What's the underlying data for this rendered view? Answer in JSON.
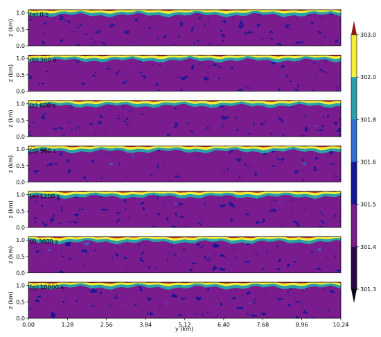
{
  "chart_data": {
    "type": "heatmap",
    "xlabel": "y (km)",
    "ylabel": "z (km)",
    "xlim": [
      0,
      10.24
    ],
    "ylim": [
      0,
      1.1
    ],
    "x_ticks": [
      "0.00",
      "1.28",
      "2.56",
      "3.84",
      "5.12",
      "6.40",
      "7.68",
      "8.96",
      "10.24"
    ],
    "y_ticks": [
      "0.0",
      "0.5",
      "1.0"
    ],
    "panels": [
      {
        "label": "(a) 0 s",
        "time_s": 0
      },
      {
        "label": "(b) 300 s",
        "time_s": 300
      },
      {
        "label": "(c) 600 s",
        "time_s": 600
      },
      {
        "label": "(d) 900 s",
        "time_s": 900
      },
      {
        "label": "(e) 1200 s",
        "time_s": 1200
      },
      {
        "label": "(f) 3600 s",
        "time_s": 3600
      },
      {
        "label": "(g) 10800 s",
        "time_s": 10800
      }
    ],
    "colorbar": {
      "ticks": [
        "303.0",
        "302.0",
        "301.8",
        "301.6",
        "301.5",
        "301.4",
        "301.3"
      ],
      "levels": [
        301.3,
        301.4,
        301.5,
        301.6,
        301.8,
        302.0,
        303.0
      ],
      "colors": [
        "#2a0a44",
        "#7a1c8e",
        "#151896",
        "#2f6fd6",
        "#2aa0a8",
        "#f2ee3a"
      ],
      "extend_low_color": "#0c0418",
      "extend_high_color": "#8e1c12"
    },
    "cap_color": "#b0281e",
    "inversion_height_km": 1.0
  }
}
